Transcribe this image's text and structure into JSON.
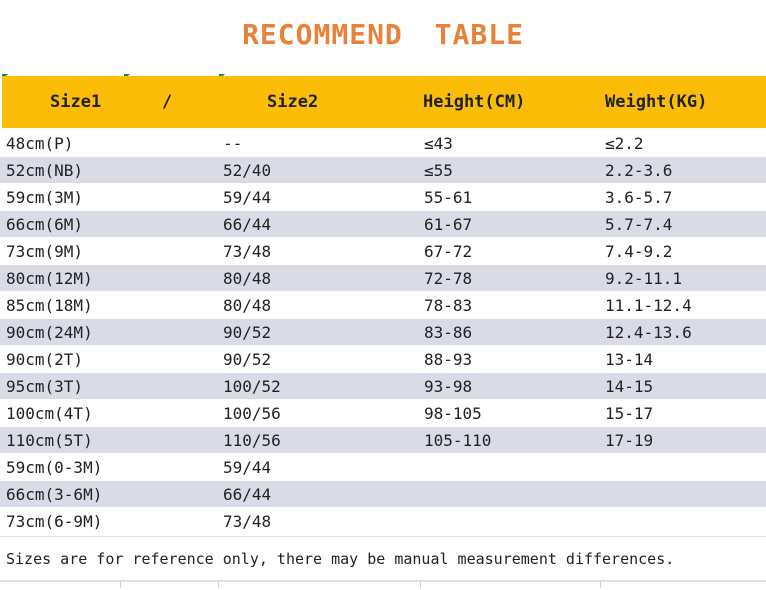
{
  "title": "RECOMMEND  TABLE",
  "header": {
    "size1": "Size1",
    "slash": "/",
    "size2": "Size2",
    "height": "Height(CM)",
    "weight": "Weight(KG)"
  },
  "rows": [
    {
      "size1": "48cm(P)",
      "size2": "--",
      "height": "≤43",
      "weight": "≤2.2"
    },
    {
      "size1": "52cm(NB)",
      "size2": "52/40",
      "height": "≤55",
      "weight": "2.2-3.6"
    },
    {
      "size1": "59cm(3M)",
      "size2": "59/44",
      "height": "55-61",
      "weight": "3.6-5.7"
    },
    {
      "size1": "66cm(6M)",
      "size2": "66/44",
      "height": "61-67",
      "weight": "5.7-7.4"
    },
    {
      "size1": "73cm(9M)",
      "size2": "73/48",
      "height": "67-72",
      "weight": "7.4-9.2"
    },
    {
      "size1": "80cm(12M)",
      "size2": "80/48",
      "height": "72-78",
      "weight": "9.2-11.1"
    },
    {
      "size1": "85cm(18M)",
      "size2": "80/48",
      "height": "78-83",
      "weight": "11.1-12.4"
    },
    {
      "size1": "90cm(24M)",
      "size2": "90/52",
      "height": "83-86",
      "weight": "12.4-13.6"
    },
    {
      "size1": "90cm(2T)",
      "size2": "90/52",
      "height": "88-93",
      "weight": "13-14"
    },
    {
      "size1": "95cm(3T)",
      "size2": "100/52",
      "height": "93-98",
      "weight": "14-15"
    },
    {
      "size1": "100cm(4T)",
      "size2": "100/56",
      "height": "98-105",
      "weight": "15-17"
    },
    {
      "size1": "110cm(5T)",
      "size2": "110/56",
      "height": "105-110",
      "weight": "17-19"
    },
    {
      "size1": "59cm(0-3M)",
      "size2": "59/44",
      "height": "",
      "weight": ""
    },
    {
      "size1": "66cm(3-6M)",
      "size2": "66/44",
      "height": "",
      "weight": ""
    },
    {
      "size1": "73cm(6-9M)",
      "size2": "73/48",
      "height": "",
      "weight": ""
    }
  ],
  "note": "Sizes are for reference only, there may be manual measurement differences.",
  "colors": {
    "title": "#e8823a",
    "header_bg": "#fbbd08",
    "alt_row_bg": "#d9dce7"
  }
}
